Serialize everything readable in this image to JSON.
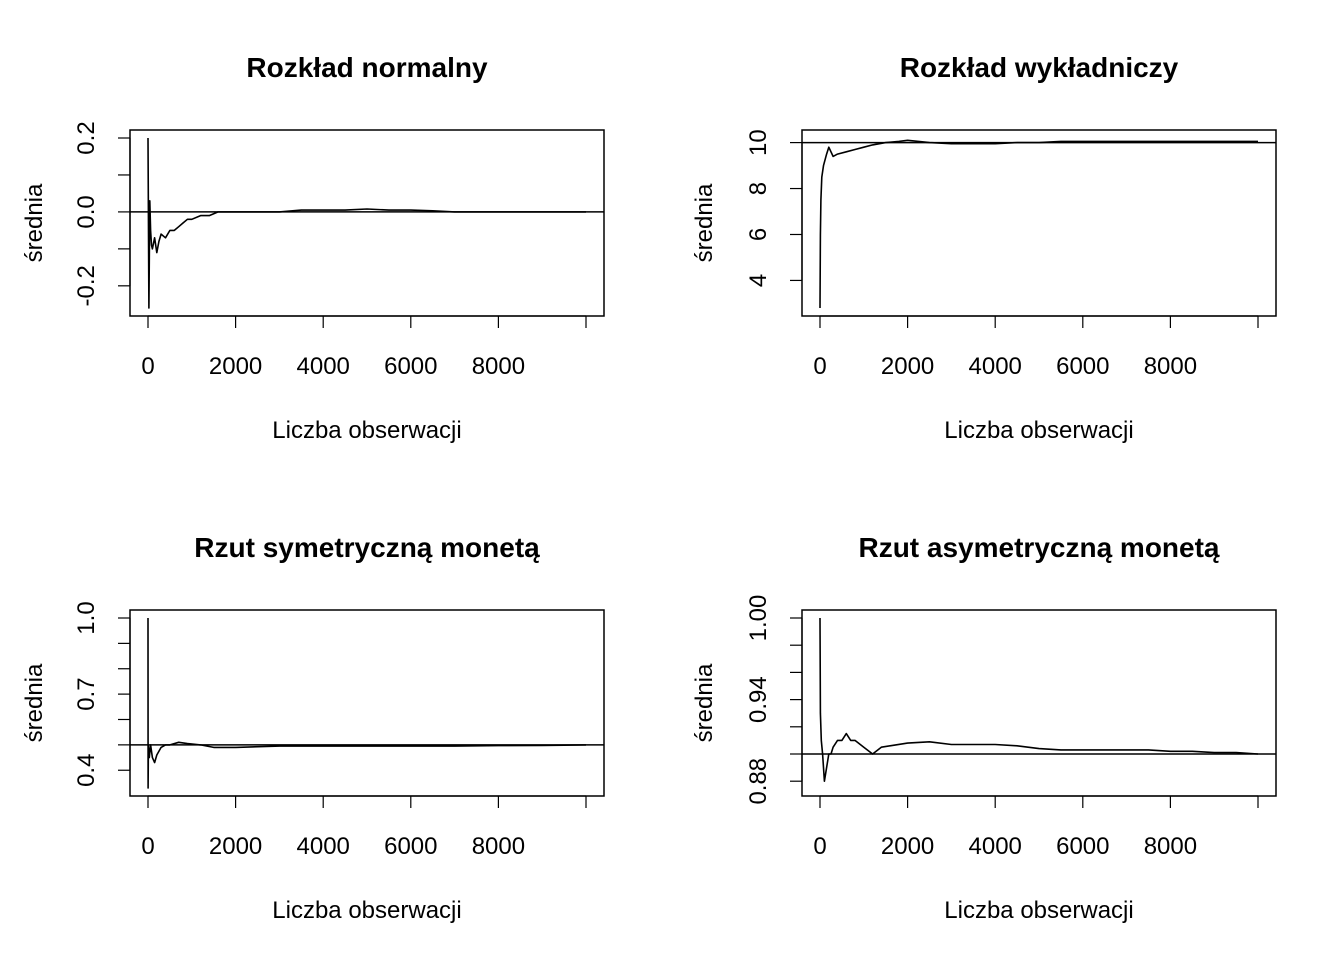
{
  "chart_data": [
    {
      "type": "line",
      "title": "Rozkład normalny",
      "xlabel": "Liczba obserwacji",
      "ylabel": "średnia",
      "xlim": [
        0,
        10000
      ],
      "ylim": [
        -0.26,
        0.2
      ],
      "x_ticks": [
        0,
        2000,
        4000,
        6000,
        8000
      ],
      "x_minor_ticks": [
        10000
      ],
      "y_ticks": [
        -0.2,
        0.0,
        0.2
      ],
      "y_tick_labels": [
        "-0.2",
        "0.0",
        "0.2"
      ],
      "y_minor_ticks": [
        -0.1,
        0.1
      ],
      "reference_line": 0,
      "series": [
        {
          "x": [
            1,
            20,
            40,
            60,
            80,
            100,
            150,
            200,
            250,
            300,
            400,
            500,
            600,
            700,
            800,
            900,
            1000,
            1200,
            1400,
            1600,
            2000,
            2500,
            3000,
            3500,
            4000,
            4500,
            5000,
            5500,
            6000,
            6500,
            7000,
            7500,
            8000,
            8500,
            9000,
            9500,
            10000
          ],
          "values": [
            0.2,
            -0.26,
            0.03,
            -0.05,
            -0.09,
            -0.1,
            -0.07,
            -0.11,
            -0.08,
            -0.06,
            -0.07,
            -0.05,
            -0.05,
            -0.04,
            -0.03,
            -0.02,
            -0.02,
            -0.01,
            -0.01,
            0.0,
            0.0,
            0.0,
            0.0,
            0.005,
            0.005,
            0.005,
            0.008,
            0.005,
            0.005,
            0.003,
            0.0,
            0.0,
            0.0,
            0.0,
            0.0,
            0.0,
            0.0
          ]
        }
      ]
    },
    {
      "type": "line",
      "title": "Rozkład wykładniczy",
      "xlabel": "Liczba obserwacji",
      "ylabel": "średnia",
      "xlim": [
        0,
        10000
      ],
      "ylim": [
        2.8,
        10.2
      ],
      "x_ticks": [
        0,
        2000,
        4000,
        6000,
        8000
      ],
      "x_minor_ticks": [
        10000
      ],
      "y_ticks": [
        4,
        6,
        8,
        10
      ],
      "y_tick_labels": [
        "4",
        "6",
        "8",
        "10"
      ],
      "reference_line": 10,
      "series": [
        {
          "x": [
            1,
            10,
            20,
            40,
            80,
            150,
            200,
            300,
            400,
            600,
            800,
            1000,
            1200,
            1500,
            1800,
            2000,
            2500,
            3000,
            3500,
            4000,
            4500,
            5000,
            5500,
            6000,
            6500,
            7000,
            7500,
            8000,
            8500,
            9000,
            9500,
            10000
          ],
          "values": [
            2.8,
            6.0,
            7.5,
            8.5,
            9.0,
            9.5,
            9.8,
            9.4,
            9.5,
            9.6,
            9.7,
            9.8,
            9.9,
            10.0,
            10.05,
            10.1,
            10.0,
            9.95,
            9.95,
            9.95,
            10.0,
            10.0,
            10.05,
            10.05,
            10.05,
            10.05,
            10.05,
            10.05,
            10.05,
            10.05,
            10.05,
            10.05
          ]
        }
      ]
    },
    {
      "type": "line",
      "title": "Rzut symetryczną monetą",
      "xlabel": "Liczba obserwacji",
      "ylabel": "średnia",
      "xlim": [
        0,
        10000
      ],
      "ylim": [
        0.33,
        1.0
      ],
      "x_ticks": [
        0,
        2000,
        4000,
        6000,
        8000
      ],
      "x_minor_ticks": [
        10000
      ],
      "y_ticks": [
        0.4,
        0.7,
        1.0
      ],
      "y_tick_labels": [
        "0.4",
        "0.7",
        "1.0"
      ],
      "y_minor_ticks": [
        0.5,
        0.6,
        0.8,
        0.9
      ],
      "reference_line": 0.5,
      "series": [
        {
          "x": [
            1,
            2,
            10,
            30,
            60,
            100,
            150,
            200,
            300,
            400,
            500,
            700,
            900,
            1200,
            1500,
            2000,
            3000,
            4000,
            5000,
            6000,
            7000,
            8000,
            9000,
            10000
          ],
          "values": [
            1.0,
            0.33,
            0.5,
            0.45,
            0.5,
            0.45,
            0.43,
            0.46,
            0.49,
            0.5,
            0.5,
            0.51,
            0.505,
            0.5,
            0.49,
            0.49,
            0.495,
            0.495,
            0.495,
            0.495,
            0.495,
            0.497,
            0.498,
            0.5
          ]
        }
      ]
    },
    {
      "type": "line",
      "title": "Rzut asymetryczną monetą",
      "xlabel": "Liczba obserwacji",
      "ylabel": "średnia",
      "xlim": [
        0,
        10000
      ],
      "ylim": [
        0.875,
        1.0
      ],
      "x_ticks": [
        0,
        2000,
        4000,
        6000,
        8000
      ],
      "x_minor_ticks": [
        10000
      ],
      "y_ticks": [
        0.88,
        0.94,
        1.0
      ],
      "y_tick_labels": [
        "0.88",
        "0.94",
        "1.00"
      ],
      "y_minor_ticks": [
        0.9,
        0.92,
        0.96,
        0.98
      ],
      "reference_line": 0.9,
      "series": [
        {
          "x": [
            1,
            10,
            30,
            60,
            100,
            150,
            200,
            250,
            300,
            400,
            500,
            600,
            700,
            800,
            1000,
            1200,
            1400,
            1600,
            2000,
            2500,
            3000,
            3500,
            4000,
            4500,
            5000,
            5500,
            6000,
            6500,
            7000,
            7500,
            8000,
            8500,
            9000,
            9500,
            10000
          ],
          "values": [
            1.0,
            0.93,
            0.91,
            0.9,
            0.88,
            0.89,
            0.9,
            0.9,
            0.905,
            0.91,
            0.91,
            0.915,
            0.91,
            0.91,
            0.905,
            0.9,
            0.905,
            0.906,
            0.908,
            0.909,
            0.907,
            0.907,
            0.907,
            0.906,
            0.904,
            0.903,
            0.903,
            0.903,
            0.903,
            0.903,
            0.902,
            0.902,
            0.901,
            0.901,
            0.9
          ]
        }
      ]
    }
  ],
  "colors": {
    "line": "#000000",
    "background": "#ffffff"
  }
}
